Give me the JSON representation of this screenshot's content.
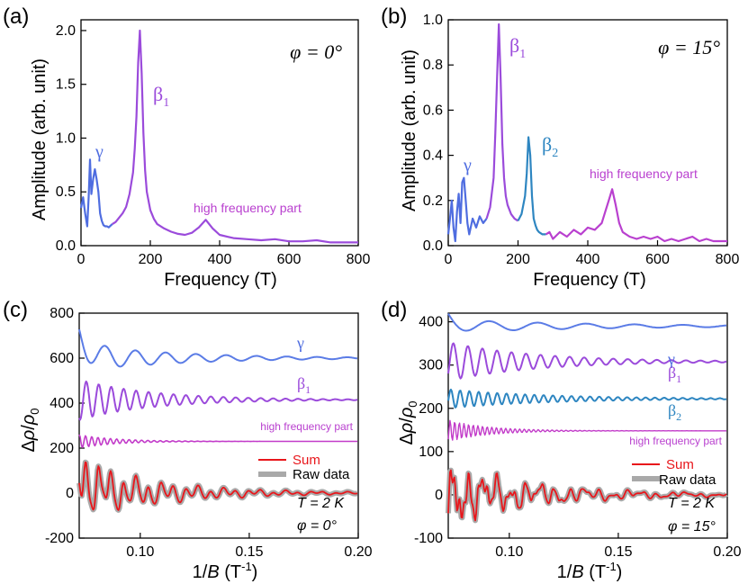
{
  "chart_data": [
    {
      "panel_label": "(a)",
      "type": "line",
      "xlabel": "Frequency (T)",
      "ylabel": "Amplitude (arb. unit)",
      "xlim": [
        0,
        800
      ],
      "ylim": [
        0,
        2.1
      ],
      "xticks": [
        "0",
        "200",
        "400",
        "600",
        "800"
      ],
      "yticks": [
        "0.0",
        "0.5",
        "1.0",
        "1.5",
        "2.0"
      ],
      "angle_label": "φ = 0°",
      "colors": {
        "gamma": "#4F6DE0",
        "beta": "#9B4BDB",
        "high": "#B940CF"
      },
      "series": [
        {
          "label": "γ",
          "color": "#4F6DE0",
          "x": [
            0,
            6,
            12,
            18,
            22,
            26,
            30,
            35,
            40,
            45,
            50,
            55,
            60,
            65,
            70,
            75,
            80,
            90
          ],
          "y": [
            0.35,
            0.45,
            0.3,
            0.18,
            0.45,
            0.8,
            0.48,
            0.62,
            0.71,
            0.62,
            0.5,
            0.3,
            0.23,
            0.19,
            0.18,
            0.18,
            0.17,
            0.2
          ]
        },
        {
          "label": "β1",
          "color": "#9B4BDB",
          "x": [
            90,
            100,
            110,
            120,
            130,
            140,
            150,
            155,
            160,
            165,
            170,
            175,
            180,
            185,
            190,
            200,
            210,
            220,
            240,
            260,
            280,
            300,
            320,
            340,
            360,
            380,
            400,
            440,
            480,
            520,
            560,
            600,
            640,
            680,
            720,
            760,
            800
          ],
          "y": [
            0.2,
            0.22,
            0.26,
            0.3,
            0.36,
            0.48,
            0.68,
            0.9,
            1.2,
            1.7,
            2.0,
            1.6,
            1.05,
            0.7,
            0.5,
            0.33,
            0.25,
            0.2,
            0.16,
            0.13,
            0.11,
            0.1,
            0.12,
            0.17,
            0.24,
            0.16,
            0.1,
            0.07,
            0.06,
            0.05,
            0.06,
            0.04,
            0.04,
            0.05,
            0.03,
            0.03,
            0.03
          ]
        }
      ],
      "annotations": [
        "γ",
        "β1",
        "high frequency part"
      ]
    },
    {
      "panel_label": "(b)",
      "type": "line",
      "xlabel": "Frequency (T)",
      "ylabel": "Amplitude (arb. unit)",
      "xlim": [
        0,
        800
      ],
      "ylim": [
        0,
        1.0
      ],
      "xticks": [
        "0",
        "200",
        "400",
        "600",
        "800"
      ],
      "yticks": [
        "0.0",
        "0.2",
        "0.4",
        "0.6",
        "0.8",
        "1.0"
      ],
      "angle_label": "φ = 15°",
      "colors": {
        "gamma": "#4F6DE0",
        "beta1": "#9B4BDB",
        "beta2": "#2E86C1",
        "high": "#B940CF"
      },
      "series": [
        {
          "label": "γ",
          "color": "#4F6DE0",
          "x": [
            0,
            5,
            10,
            15,
            20,
            25,
            30,
            35,
            40,
            45,
            50,
            55,
            60,
            70,
            80,
            90,
            100,
            110
          ],
          "y": [
            0.05,
            0.12,
            0.2,
            0.08,
            0.02,
            0.15,
            0.23,
            0.1,
            0.28,
            0.3,
            0.2,
            0.1,
            0.05,
            0.12,
            0.08,
            0.13,
            0.1,
            0.12
          ]
        },
        {
          "label": "β1",
          "color": "#9B4BDB",
          "x": [
            110,
            120,
            130,
            135,
            140,
            145,
            150,
            155,
            160,
            165,
            170,
            180,
            190,
            200
          ],
          "y": [
            0.12,
            0.17,
            0.3,
            0.5,
            0.75,
            0.98,
            0.75,
            0.45,
            0.3,
            0.22,
            0.18,
            0.14,
            0.12,
            0.11
          ]
        },
        {
          "label": "β2",
          "color": "#2E86C1",
          "x": [
            200,
            210,
            220,
            225,
            230,
            235,
            240,
            245,
            250,
            255,
            260,
            270,
            280
          ],
          "y": [
            0.11,
            0.14,
            0.22,
            0.32,
            0.48,
            0.4,
            0.22,
            0.12,
            0.09,
            0.07,
            0.06,
            0.05,
            0.05
          ]
        },
        {
          "label": "high",
          "color": "#B940CF",
          "x": [
            280,
            290,
            300,
            320,
            340,
            360,
            380,
            400,
            420,
            440,
            450,
            460,
            470,
            480,
            490,
            500,
            520,
            540,
            560,
            580,
            600,
            620,
            640,
            660,
            680,
            700,
            720,
            740,
            760,
            780,
            800
          ],
          "y": [
            0.05,
            0.06,
            0.03,
            0.06,
            0.04,
            0.07,
            0.05,
            0.08,
            0.07,
            0.1,
            0.15,
            0.2,
            0.25,
            0.18,
            0.1,
            0.06,
            0.04,
            0.03,
            0.04,
            0.03,
            0.04,
            0.02,
            0.03,
            0.02,
            0.03,
            0.04,
            0.02,
            0.03,
            0.02,
            0.02,
            0.02
          ]
        }
      ],
      "annotations": [
        "γ",
        "β1",
        "β2",
        "high frequency part"
      ]
    },
    {
      "panel_label": "(c)",
      "type": "line",
      "xlabel": "1/B (T-1)",
      "ylabel": "Δρ/ρ0",
      "xlim": [
        0.072,
        0.2
      ],
      "ylim": [
        -200,
        800
      ],
      "xticks": [
        "0.10",
        "0.15",
        "0.20"
      ],
      "yticks": [
        "-200",
        "0",
        "200",
        "400",
        "600",
        "800"
      ],
      "offsets": [
        600,
        415,
        230,
        0
      ],
      "series_labels": [
        "γ",
        "β1",
        "high frequency part"
      ],
      "legend": [
        "Sum",
        "Raw data"
      ],
      "legend_colors": [
        "#E8161B",
        "#A9A9A9"
      ],
      "temperature": "T = 2 K",
      "angle_label": "φ = 0°"
    },
    {
      "panel_label": "(d)",
      "type": "line",
      "xlabel": "1/B (T-1)",
      "ylabel": "Δρ/ρ0",
      "xlim": [
        0.072,
        0.2
      ],
      "ylim": [
        -100,
        420
      ],
      "xticks": [
        "0.10",
        "0.15",
        "0.20"
      ],
      "yticks": [
        "-100",
        "0",
        "100",
        "200",
        "300",
        "400"
      ],
      "offsets": [
        390,
        308,
        222,
        148,
        0
      ],
      "series_labels": [
        "γ",
        "β1",
        "β2",
        "high frequency part"
      ],
      "legend": [
        "Sum",
        "Raw data"
      ],
      "legend_colors": [
        "#E8161B",
        "#A9A9A9"
      ],
      "temperature": "T = 2 K",
      "angle_label": "φ = 15°"
    }
  ]
}
